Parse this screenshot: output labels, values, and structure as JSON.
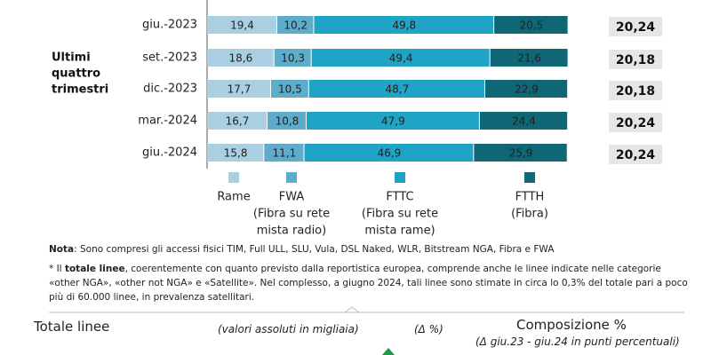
{
  "chart_data": {
    "type": "stacked-horizontal-bar",
    "group_label": [
      "Ultimi",
      "quattro",
      "trimestri"
    ],
    "categories": [
      "giu.-2023",
      "set.-2023",
      "dic.-2023",
      "mar.-2024",
      "giu.-2024"
    ],
    "xlim": [
      0,
      100
    ],
    "series": [
      {
        "name": "Rame",
        "color": "#a9cfe1",
        "legend_sublabel": [],
        "values": [
          19.4,
          18.6,
          17.7,
          16.7,
          15.8
        ],
        "value_labels": [
          "19,4",
          "18,6",
          "17,7",
          "16,7",
          "15,8"
        ]
      },
      {
        "name": "FWA",
        "color": "#5daccb",
        "legend_sublabel": [
          "(Fibra su rete",
          "mista radio)"
        ],
        "values": [
          10.2,
          10.3,
          10.5,
          10.8,
          11.1
        ],
        "value_labels": [
          "10,2",
          "10,3",
          "10,5",
          "10,8",
          "11,1"
        ]
      },
      {
        "name": "FTTC",
        "color": "#1fa4c6",
        "legend_sublabel": [
          "(Fibra su rete",
          "mista rame)"
        ],
        "values": [
          49.8,
          49.4,
          48.7,
          47.9,
          46.9
        ],
        "value_labels": [
          "49,8",
          "49,4",
          "48,7",
          "47,9",
          "46,9"
        ]
      },
      {
        "name": "FTTH",
        "color": "#0f6675",
        "legend_sublabel": [
          "(Fibra)"
        ],
        "values": [
          20.5,
          21.6,
          22.9,
          24.4,
          25.9
        ],
        "value_labels": [
          "20,5",
          "21,6",
          "22,9",
          "24,4",
          "25,9"
        ]
      }
    ],
    "totals": {
      "values": [
        20.24,
        20.18,
        20.18,
        20.24,
        20.24
      ],
      "value_labels": [
        "20,24",
        "20,18",
        "20,18",
        "20,24",
        "20,24"
      ]
    }
  },
  "notes": {
    "note_label": "Nota",
    "note_text": ": Sono compresi gli accessi fisici TIM, Full ULL, SLU, Vula, DSL Naked, WLR, Bitstream NGA, Fibra e FWA",
    "star_prefix": "* Il ",
    "star_bold": "totale linee",
    "star_text": ", coerentemente con quanto previsto dalla reportistica europea, comprende anche le linee indicate nelle categorie «other NGA», «other not NGA» e «Satellite». Nel complesso, a giugno 2024, tali linee sono stimate in circa lo 0,3% del totale pari a poco più di 60.000 linee, in prevalenza satellitari."
  },
  "section": {
    "title": "Totale linee",
    "units": "(valori assoluti in migliaia)",
    "delta": "(Δ %)",
    "composition_title": "Composizione %",
    "composition_sub": "(Δ giu.23 - giu.24 in punti percentuali)"
  }
}
